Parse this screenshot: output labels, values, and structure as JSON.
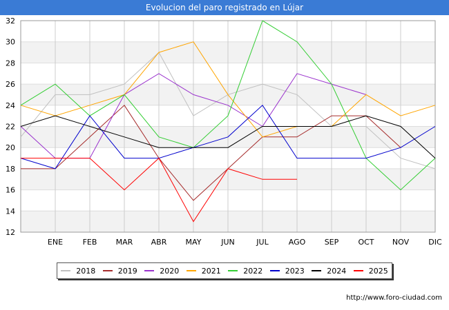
{
  "header": {
    "title": "Evolucion del paro registrado en Lújar"
  },
  "source": "http://www.foro-ciudad.com",
  "chart_data": {
    "type": "line",
    "title": "Evolucion del paro registrado en Lújar",
    "xlabel": "",
    "ylabel": "",
    "ylim": [
      12,
      32
    ],
    "yticks": [
      12,
      14,
      16,
      18,
      20,
      22,
      24,
      26,
      28,
      30,
      32
    ],
    "grid": true,
    "legend_position": "bottom",
    "categories": [
      "",
      "ENE",
      "FEB",
      "MAR",
      "ABR",
      "MAY",
      "JUN",
      "JUL",
      "AGO",
      "SEP",
      "OCT",
      "NOV",
      "DIC"
    ],
    "series": [
      {
        "name": "2018",
        "color": "#c0c0c0",
        "values": [
          21,
          25,
          25,
          26,
          29,
          23,
          25,
          26,
          25,
          22,
          22,
          19,
          18
        ]
      },
      {
        "name": "2019",
        "color": "#a52a2a",
        "values": [
          18,
          18,
          21,
          24,
          19,
          15,
          18,
          21,
          21,
          23,
          23,
          20,
          null
        ]
      },
      {
        "name": "2020",
        "color": "#9a32cd",
        "values": [
          22,
          19,
          19,
          25,
          27,
          25,
          24,
          22,
          27,
          26,
          25,
          null,
          null
        ]
      },
      {
        "name": "2021",
        "color": "#ffa500",
        "values": [
          24,
          23,
          24,
          25,
          29,
          30,
          25,
          21,
          22,
          22,
          25,
          23,
          24
        ]
      },
      {
        "name": "2022",
        "color": "#32cd32",
        "values": [
          24,
          26,
          23,
          25,
          21,
          20,
          23,
          32,
          30,
          26,
          19,
          16,
          19
        ]
      },
      {
        "name": "2023",
        "color": "#0000cd",
        "values": [
          19,
          18,
          23,
          19,
          19,
          20,
          21,
          24,
          19,
          19,
          19,
          20,
          22
        ]
      },
      {
        "name": "2024",
        "color": "#000000",
        "values": [
          22,
          23,
          22,
          21,
          20,
          20,
          20,
          22,
          22,
          22,
          23,
          22,
          19
        ]
      },
      {
        "name": "2025",
        "color": "#ff0000",
        "values": [
          19,
          19,
          19,
          16,
          19,
          13,
          18,
          17,
          17,
          null,
          null,
          null,
          null
        ]
      }
    ]
  }
}
